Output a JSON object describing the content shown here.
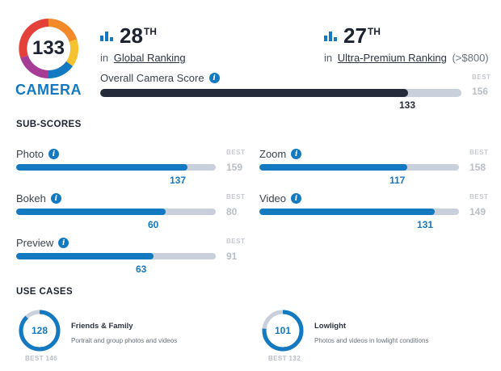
{
  "header": {
    "score": "133",
    "category": "CAMERA",
    "global_rank": {
      "number": "28",
      "suffix": "TH",
      "prefix": "in",
      "link": "Global Ranking",
      "extra": ""
    },
    "segment_rank": {
      "number": "27",
      "suffix": "TH",
      "prefix": "in",
      "link": "Ultra-Premium Ranking",
      "extra": "(>$800)"
    }
  },
  "overall": {
    "label": "Overall Camera Score",
    "value": "133",
    "best_caption": "BEST",
    "best": "156",
    "fraction": 0.853
  },
  "subscores": {
    "title": "SUB-SCORES",
    "items": [
      {
        "label": "Photo",
        "value": "137",
        "best_caption": "BEST",
        "best": "159",
        "fraction": 0.86
      },
      {
        "label": "Zoom",
        "value": "117",
        "best_caption": "BEST",
        "best": "158",
        "fraction": 0.74
      },
      {
        "label": "Bokeh",
        "value": "60",
        "best_caption": "BEST",
        "best": "80",
        "fraction": 0.75
      },
      {
        "label": "Video",
        "value": "131",
        "best_caption": "BEST",
        "best": "149",
        "fraction": 0.88
      },
      {
        "label": "Preview",
        "value": "63",
        "best_caption": "BEST",
        "best": "91",
        "fraction": 0.69
      }
    ]
  },
  "use_cases": {
    "title": "USE CASES",
    "items": [
      {
        "score": "128",
        "best": "BEST 146",
        "title": "Friends & Family",
        "description": "Portrait and group photos and videos",
        "fraction": 0.877
      },
      {
        "score": "101",
        "best": "BEST 132",
        "title": "Lowlight",
        "description": "Photos and videos in lowlight conditions",
        "fraction": 0.765
      }
    ]
  },
  "colors": {
    "accent": "#1379c0",
    "dark_bar": "#262b3b",
    "track": "#c9cfdb",
    "ring_track": "#c9cfdb",
    "badge_ring": [
      "#e5413b",
      "#f28a2a",
      "#f5c230",
      "#a63c94",
      "#1379c0"
    ]
  },
  "icons": {
    "info": "info-icon",
    "rank": "bar-chart-icon"
  }
}
